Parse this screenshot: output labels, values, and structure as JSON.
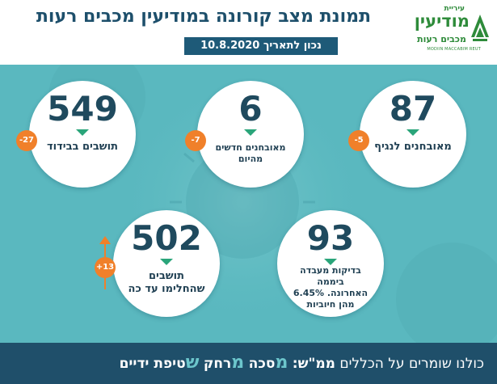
{
  "header": {
    "title": "תמונת מצב קורונה במודיעין מכבים רעות",
    "date": "נכון לתאריך 10.8.2020"
  },
  "logo": {
    "small": "עיריית",
    "big": "מודיעין",
    "sub": "מכבים רעות",
    "english": "MODIIN MACCABIM REUT"
  },
  "stats": [
    {
      "value": "87",
      "label": "מאובחנים לנגיף",
      "change": "-5",
      "direction": "down"
    },
    {
      "value": "6",
      "label": "מאובחנים חדשים\nמהיום",
      "change": "-7",
      "direction": "down"
    },
    {
      "value": "549",
      "label": "תושבים בבידוד",
      "change": "-27",
      "direction": "down"
    },
    {
      "value": "93",
      "label": "בדיקות מעבדה ביממה\nהאחרונה. 6.45%\nמהן חיוביות",
      "direction": "down"
    },
    {
      "value": "502",
      "label": "תושבים\nשהחלימו עד כה",
      "change": "+13",
      "direction": "up"
    }
  ],
  "footer": {
    "intro": "כולנו שומרים על הכללים",
    "acronym": "ממ\"ש:",
    "m1": "מ",
    "w1": "סכה",
    "m2": "מ",
    "w2": "רחק",
    "m3": "ש",
    "w3": "טיפת ידיים"
  },
  "colors": {
    "background": "#5fbcc2",
    "header_text": "#1d4f6b",
    "date_pill": "#1e5a78",
    "badge": "#f0802a",
    "arrow": "#2aa57a",
    "footer": "#1f4f6a",
    "footer_highlight": "#6cc6cc",
    "logo_green": "#2e8b3a"
  }
}
